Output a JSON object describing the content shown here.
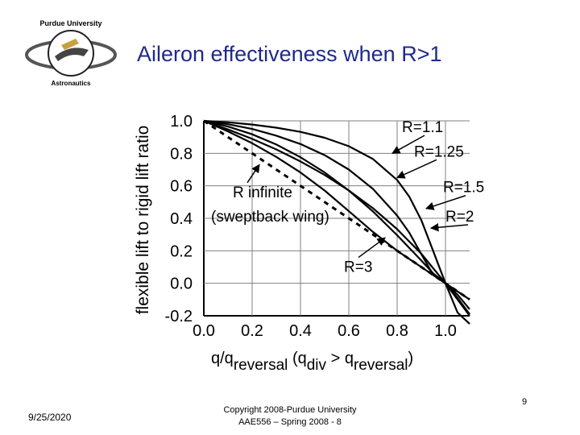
{
  "header": {
    "title": "Aileron effectiveness when R>1",
    "logo_text_top": "Purdue University",
    "logo_text_bottom": "Astronautics"
  },
  "footer": {
    "date": "9/25/2020",
    "copyright_line1": "Copyright 2008-Purdue University",
    "copyright_line2": "AAE556 – Spring 2008 - 8",
    "page_number": "9"
  },
  "colors": {
    "title": "#1f2a8a",
    "curve": "#000000",
    "grid": "#808080"
  },
  "chart_data": {
    "type": "line",
    "ylabel": "flexible lift to rigid lift ratio",
    "xlabel_parts": [
      "q/q",
      "reversal",
      " (q",
      "div",
      " > q",
      "reversal",
      ")"
    ],
    "xlim": [
      0,
      1.1
    ],
    "ylim": [
      -0.2,
      1.0
    ],
    "xticks": [
      "0.0",
      "0.2",
      "0.4",
      "0.6",
      "0.8",
      "1.0"
    ],
    "yticks": [
      "1.0",
      "0.8",
      "0.6",
      "0.4",
      "0.2",
      "0.0",
      "-0.2"
    ],
    "grid": true,
    "series": [
      {
        "name": "R=1.1",
        "R": 1.1,
        "style": "solid",
        "x": [
          0,
          0.1,
          0.2,
          0.3,
          0.4,
          0.5,
          0.6,
          0.7,
          0.8,
          0.85,
          0.9,
          0.95,
          1.0,
          1.05,
          1.1
        ],
        "values": [
          1,
          0.991,
          0.977,
          0.958,
          0.932,
          0.896,
          0.844,
          0.765,
          0.636,
          0.534,
          0.389,
          0.195,
          0,
          -0.18,
          -0.25
        ]
      },
      {
        "name": "R=1.25",
        "R": 1.25,
        "style": "solid",
        "x": [
          0,
          0.1,
          0.2,
          0.3,
          0.4,
          0.5,
          0.6,
          0.7,
          0.8,
          0.85,
          0.9,
          0.95,
          1.0,
          1.05,
          1.1
        ],
        "values": [
          1,
          0.979,
          0.95,
          0.909,
          0.857,
          0.789,
          0.7,
          0.581,
          0.417,
          0.312,
          0.18,
          0.05,
          0,
          -0.1,
          -0.2
        ]
      },
      {
        "name": "R=1.5",
        "R": 1.5,
        "style": "solid",
        "x": [
          0,
          0.1,
          0.2,
          0.3,
          0.4,
          0.5,
          0.6,
          0.7,
          0.8,
          0.9,
          0.95,
          1.0,
          1.05,
          1.1
        ],
        "values": [
          1,
          0.965,
          0.917,
          0.854,
          0.776,
          0.682,
          0.571,
          0.442,
          0.296,
          0.14,
          0.06,
          0,
          -0.09,
          -0.19
        ]
      },
      {
        "name": "R=2",
        "R": 2.0,
        "style": "solid",
        "x": [
          0,
          0.1,
          0.2,
          0.3,
          0.4,
          0.5,
          0.6,
          0.7,
          0.8,
          0.9,
          1.0,
          1.05,
          1.1
        ],
        "values": [
          1,
          0.947,
          0.889,
          0.824,
          0.75,
          0.667,
          0.571,
          0.462,
          0.333,
          0.182,
          0,
          -0.07,
          -0.16
        ]
      },
      {
        "name": "R=3",
        "R": 3.0,
        "style": "solid",
        "x": [
          0,
          0.1,
          0.2,
          0.3,
          0.4,
          0.5,
          0.6,
          0.7,
          0.8,
          0.9,
          1.0,
          1.05,
          1.1
        ],
        "values": [
          1,
          0.935,
          0.862,
          0.778,
          0.682,
          0.571,
          0.444,
          0.316,
          0.2,
          0.1,
          0,
          -0.05,
          -0.1
        ]
      },
      {
        "name": "R infinite",
        "R": "infinite",
        "style": "dashed",
        "x": [
          0,
          1.1
        ],
        "values": [
          1,
          -0.1
        ]
      }
    ],
    "annotations": [
      {
        "label": "R=1.1",
        "tx": 0.82,
        "ty": 0.93,
        "ax": 0.78,
        "ay": 0.8
      },
      {
        "label": "R=1.25",
        "tx": 0.87,
        "ty": 0.78,
        "ax": 0.8,
        "ay": 0.65
      },
      {
        "label": "R=1.5",
        "tx": 0.99,
        "ty": 0.56,
        "ax": 0.92,
        "ay": 0.46
      },
      {
        "label": "R=2",
        "tx": 1.0,
        "ty": 0.38,
        "ax": 0.94,
        "ay": 0.34
      },
      {
        "label": "R infinite",
        "tx": 0.12,
        "ty": 0.53,
        "ax": 0.23,
        "ay": 0.73
      },
      {
        "label": "(sweptback wing)",
        "tx": 0.03,
        "ty": 0.38
      },
      {
        "label": "R=3",
        "tx": 0.58,
        "ty": 0.07,
        "ax": 0.75,
        "ay": 0.28
      }
    ]
  }
}
